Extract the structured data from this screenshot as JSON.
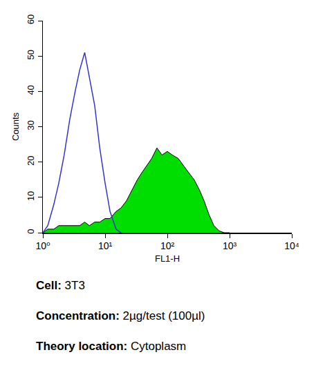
{
  "chart_data": {
    "type": "line",
    "log": "x",
    "x_label": "FL1-H",
    "y_label": "Counts",
    "x": [
      1,
      1.2,
      1.5,
      1.8,
      2.2,
      2.7,
      3.3,
      3.9,
      4.7,
      5.6,
      6.8,
      8.2,
      10,
      12,
      15,
      18,
      22,
      27,
      33,
      39,
      47,
      56,
      68,
      82,
      100,
      120,
      150,
      180,
      220,
      270,
      330,
      390,
      470,
      560,
      680,
      820,
      1000
    ],
    "series": [
      {
        "type": "line",
        "color": "#3434d4",
        "values": [
          0,
          2,
          8,
          14,
          22,
          32,
          40,
          46,
          51,
          44,
          36,
          24,
          14,
          6,
          1,
          0,
          null,
          null,
          null,
          null,
          null,
          null,
          null,
          null,
          null,
          null,
          null,
          null,
          null,
          null,
          null,
          null,
          null,
          null,
          null,
          null,
          null
        ]
      },
      {
        "type": "area",
        "color": "#00dd00",
        "values": [
          0,
          1,
          1,
          2,
          2,
          2,
          2,
          2,
          3,
          2,
          3,
          3,
          4,
          4,
          6,
          7,
          9,
          12,
          15,
          17,
          19,
          21,
          24,
          22,
          23,
          22,
          21,
          19,
          17,
          15,
          12,
          9,
          5,
          2,
          0.5,
          0,
          0
        ]
      }
    ],
    "xlim": [
      1,
      10000
    ],
    "xticks": [
      {
        "value": 1,
        "label": "10⁰"
      },
      {
        "value": 10,
        "label": "10¹"
      },
      {
        "value": 100,
        "label": "10²"
      },
      {
        "value": 1000,
        "label": "10³"
      },
      {
        "value": 10000,
        "label": "10⁴"
      }
    ],
    "ylim": [
      0,
      60
    ],
    "yticks": [
      0,
      10,
      20,
      30,
      40,
      50,
      60
    ],
    "grid": false,
    "annotations": [
      {
        "label": "Cell:",
        "text": "3T3"
      },
      {
        "label": "Concentration:",
        "text": "2µg/test (100µl)"
      },
      {
        "label": "Theory location:",
        "text": "Cytoplasm"
      }
    ]
  }
}
